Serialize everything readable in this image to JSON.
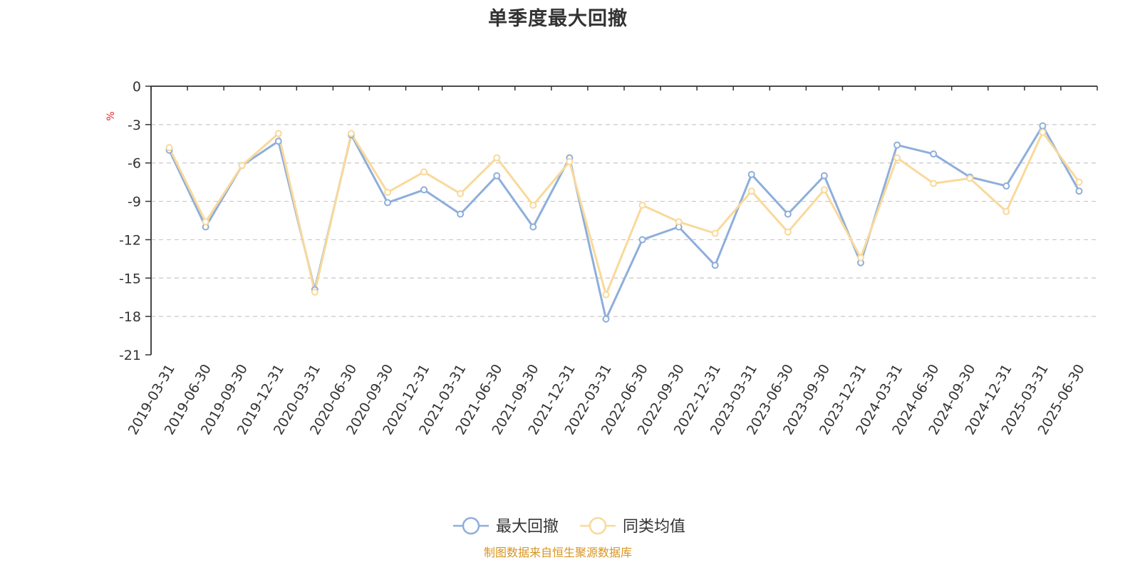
{
  "chart_data": {
    "type": "line",
    "title": "单季度最大回撤",
    "ylabel": "%",
    "xlabel": "",
    "ylim": [
      -21,
      0
    ],
    "yticks": [
      0,
      -3,
      -6,
      -9,
      -12,
      -15,
      -18,
      -21
    ],
    "grid": true,
    "legend_position": "bottom-center",
    "categories": [
      "2019-03-31",
      "2019-06-30",
      "2019-09-30",
      "2019-12-31",
      "2020-03-31",
      "2020-06-30",
      "2020-09-30",
      "2020-12-31",
      "2021-03-31",
      "2021-06-30",
      "2021-09-30",
      "2021-12-31",
      "2022-03-31",
      "2022-06-30",
      "2022-09-30",
      "2022-12-31",
      "2023-03-31",
      "2023-06-30",
      "2023-09-30",
      "2023-12-31",
      "2024-03-31",
      "2024-06-30",
      "2024-09-30",
      "2024-12-31",
      "2025-03-31",
      "2025-06-30"
    ],
    "series": [
      {
        "name": "最大回撤",
        "color": "#8eaedb",
        "values": [
          -5.0,
          -11.0,
          -6.2,
          -4.3,
          -15.9,
          -3.8,
          -9.1,
          -8.1,
          -10.0,
          -7.0,
          -11.0,
          -5.6,
          -18.2,
          -12.0,
          -11.0,
          -14.0,
          -6.9,
          -10.0,
          -7.0,
          -13.8,
          -4.6,
          -5.3,
          -7.1,
          -7.8,
          -3.1,
          -8.2
        ]
      },
      {
        "name": "同类均值",
        "color": "#f9d99a",
        "values": [
          -4.8,
          -10.6,
          -6.2,
          -3.7,
          -16.1,
          -3.7,
          -8.3,
          -6.7,
          -8.4,
          -5.6,
          -9.3,
          -5.9,
          -16.3,
          -9.3,
          -10.6,
          -11.5,
          -8.2,
          -11.4,
          -8.1,
          -13.4,
          -5.6,
          -7.6,
          -7.2,
          -9.8,
          -3.6,
          -7.5
        ]
      }
    ]
  },
  "source_note": "制图数据来自恒生聚源数据库"
}
